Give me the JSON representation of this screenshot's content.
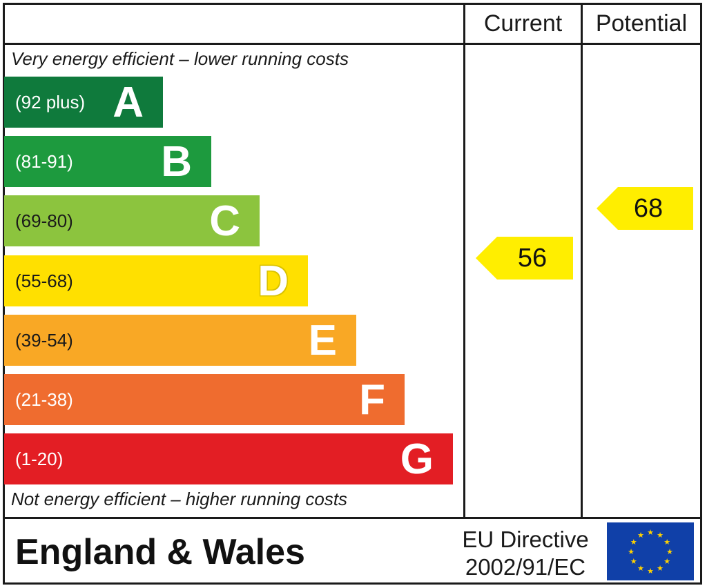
{
  "columns": {
    "current": "Current",
    "potential": "Potential"
  },
  "captions": {
    "top": "Very energy efficient – lower running costs",
    "bottom": "Not energy efficient – higher running costs"
  },
  "footer": {
    "region": "England & Wales",
    "directive_line1": "EU Directive",
    "directive_line2": "2002/91/EC",
    "flag_icon": "eu-flag-icon"
  },
  "chart_data": {
    "type": "bar",
    "title": "",
    "categories": [
      "A",
      "B",
      "C",
      "D",
      "E",
      "F",
      "G"
    ],
    "ranges": [
      "(92 plus)",
      "(81-91)",
      "(69-80)",
      "(55-68)",
      "(39-54)",
      "(21-38)",
      "(1-20)"
    ],
    "colors": [
      "#0f7a3c",
      "#1d9a3e",
      "#8cc43e",
      "#ffe000",
      "#f9a825",
      "#ef6c2f",
      "#e31e24"
    ],
    "current": {
      "value": 56,
      "band": "D"
    },
    "potential": {
      "value": 68,
      "band": "D"
    },
    "arrow_color": "#ffee00"
  }
}
